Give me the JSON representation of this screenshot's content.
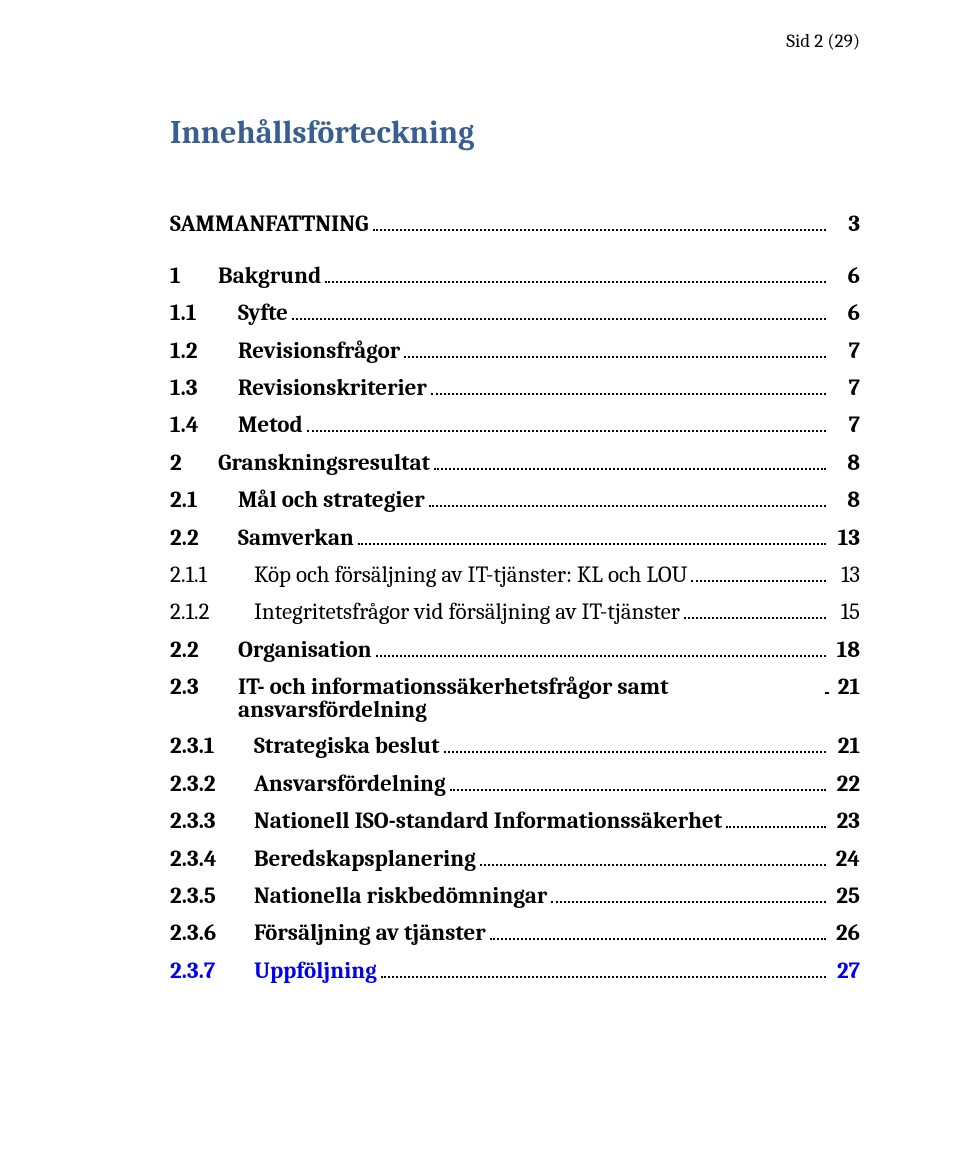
{
  "pageHeader": "Sid 2 (29)",
  "title": "Innehållsförteckning",
  "colors": {
    "titleColor": "#385f8f",
    "textColor": "#000000",
    "linkColor": "#0000ee",
    "background": "#ffffff",
    "leaderColor": "#000000"
  },
  "typography": {
    "titleFontSizePx": 32,
    "bodyFontSizePx": 23,
    "pageHeaderFontSizePx": 19,
    "fontFamily": "Cambria, Times New Roman, serif"
  },
  "toc": [
    {
      "num": "",
      "label": "SAMMANFATTNING",
      "page": "3",
      "level": 0,
      "bold": true,
      "gapAbove": false
    },
    {
      "num": "1",
      "label": "Bakgrund",
      "page": "6",
      "level": 0,
      "bold": true,
      "gapAbove": true
    },
    {
      "num": "1.1",
      "label": "Syfte",
      "page": "6",
      "level": 1,
      "bold": true,
      "gapAbove": false
    },
    {
      "num": "1.2",
      "label": "Revisionsfrågor",
      "page": "7",
      "level": 1,
      "bold": true,
      "gapAbove": false
    },
    {
      "num": "1.3",
      "label": "Revisionskriterier",
      "page": "7",
      "level": 1,
      "bold": true,
      "gapAbove": false
    },
    {
      "num": "1.4",
      "label": "Metod",
      "page": "7",
      "level": 1,
      "bold": true,
      "gapAbove": false
    },
    {
      "num": "2",
      "label": "Granskningsresultat",
      "page": "8",
      "level": 0,
      "bold": true,
      "gapAbove": false
    },
    {
      "num": "2.1",
      "label": "Mål och strategier",
      "page": "8",
      "level": 1,
      "bold": true,
      "gapAbove": false
    },
    {
      "num": "2.2",
      "label": "Samverkan",
      "page": "13",
      "level": 1,
      "bold": true,
      "gapAbove": false
    },
    {
      "num": "2.1.1",
      "label": "Köp och försäljning av IT-tjänster: KL och LOU",
      "page": "13",
      "level": 2,
      "bold": false,
      "gapAbove": false
    },
    {
      "num": "2.1.2",
      "label": "Integritetsfrågor vid försäljning av IT-tjänster",
      "page": "15",
      "level": 2,
      "bold": false,
      "gapAbove": false
    },
    {
      "num": "2.2",
      "label": "Organisation",
      "page": "18",
      "level": 1,
      "bold": true,
      "gapAbove": false
    },
    {
      "num": "2.3",
      "label": "IT- och informationssäkerhetsfrågor samt ansvarsfördelning",
      "page": "21",
      "level": 1,
      "bold": true,
      "gapAbove": false,
      "tight": true
    },
    {
      "num": "2.3.1",
      "label": "Strategiska beslut",
      "page": "21",
      "level": 2,
      "bold": true,
      "gapAbove": false
    },
    {
      "num": "2.3.2",
      "label": "Ansvarsfördelning",
      "page": "22",
      "level": 2,
      "bold": true,
      "gapAbove": false
    },
    {
      "num": "2.3.3",
      "label": "Nationell ISO-standard Informationssäkerhet",
      "page": "23",
      "level": 2,
      "bold": true,
      "gapAbove": false
    },
    {
      "num": "2.3.4",
      "label": "Beredskapsplanering",
      "page": "24",
      "level": 2,
      "bold": true,
      "gapAbove": false
    },
    {
      "num": "2.3.5",
      "label": "Nationella riskbedömningar",
      "page": "25",
      "level": 2,
      "bold": true,
      "gapAbove": false
    },
    {
      "num": "2.3.6",
      "label": "Försäljning av tjänster",
      "page": "26",
      "level": 2,
      "bold": true,
      "gapAbove": false
    },
    {
      "num": "2.3.7",
      "label": "Uppföljning",
      "page": "27",
      "level": 2,
      "bold": true,
      "link": true,
      "gapAbove": false
    }
  ]
}
